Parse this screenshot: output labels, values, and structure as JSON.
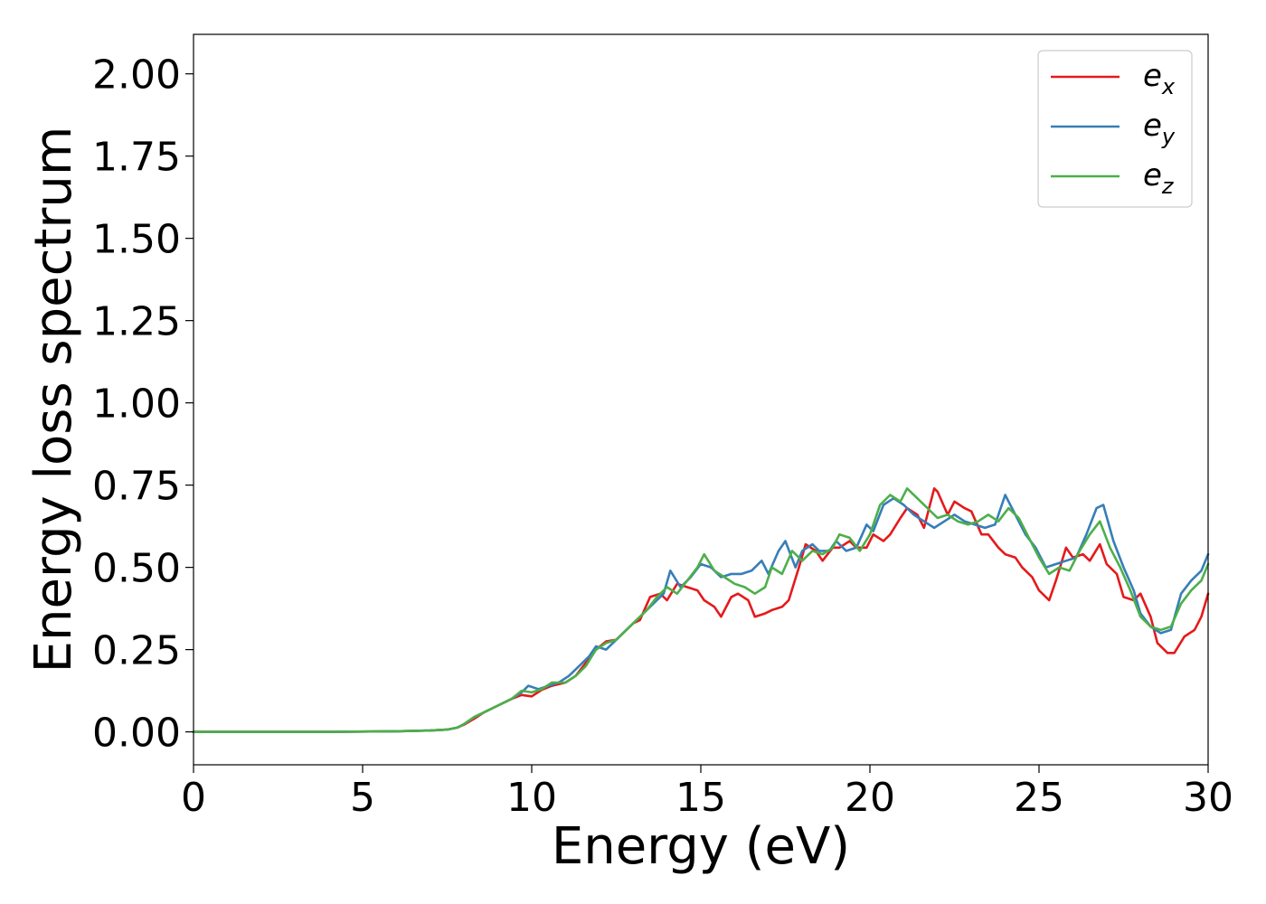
{
  "chart_data": {
    "type": "line",
    "xlabel": "Energy (eV)",
    "ylabel": "Energy loss spectrum",
    "xlim": [
      0,
      30
    ],
    "ylim": [
      -0.1,
      2.12
    ],
    "xticks": [
      0,
      5,
      10,
      15,
      20,
      25,
      30
    ],
    "xtick_labels": [
      "0",
      "5",
      "10",
      "15",
      "20",
      "25",
      "30"
    ],
    "yticks": [
      0.0,
      0.25,
      0.5,
      0.75,
      1.0,
      1.25,
      1.5,
      1.75,
      2.0
    ],
    "ytick_labels": [
      "0.00",
      "0.25",
      "0.50",
      "0.75",
      "1.00",
      "1.25",
      "1.50",
      "1.75",
      "2.00"
    ],
    "grid": false,
    "legend_position": "top-right",
    "series": [
      {
        "name": "e_x",
        "legend_main": "e",
        "legend_sub": "x",
        "color": "#e41a1c",
        "x": [
          0,
          2,
          4,
          6,
          7,
          7.5,
          7.8,
          8.0,
          8.3,
          8.6,
          9.0,
          9.4,
          9.7,
          10.0,
          10.3,
          10.6,
          11.0,
          11.3,
          11.6,
          11.9,
          12.2,
          12.5,
          12.8,
          13.0,
          13.2,
          13.5,
          13.8,
          14.0,
          14.3,
          14.6,
          14.9,
          15.1,
          15.4,
          15.6,
          15.9,
          16.1,
          16.4,
          16.6,
          16.9,
          17.1,
          17.4,
          17.6,
          17.9,
          18.1,
          18.4,
          18.6,
          18.9,
          19.1,
          19.4,
          19.6,
          19.9,
          20.1,
          20.4,
          20.6,
          20.9,
          21.1,
          21.4,
          21.6,
          21.9,
          22.0,
          22.3,
          22.5,
          22.8,
          23.0,
          23.3,
          23.5,
          23.8,
          24.0,
          24.3,
          24.5,
          24.8,
          25.0,
          25.3,
          25.5,
          25.8,
          26.0,
          26.3,
          26.5,
          26.8,
          27.0,
          27.3,
          27.5,
          27.8,
          28.0,
          28.3,
          28.5,
          28.8,
          29.0,
          29.3,
          29.6,
          29.8,
          30.0
        ],
        "y": [
          0,
          0,
          0,
          0.002,
          0.004,
          0.007,
          0.013,
          0.022,
          0.04,
          0.06,
          0.08,
          0.1,
          0.112,
          0.108,
          0.128,
          0.14,
          0.15,
          0.17,
          0.21,
          0.25,
          0.275,
          0.28,
          0.31,
          0.33,
          0.34,
          0.41,
          0.42,
          0.4,
          0.45,
          0.44,
          0.43,
          0.4,
          0.38,
          0.35,
          0.41,
          0.42,
          0.4,
          0.35,
          0.36,
          0.37,
          0.38,
          0.4,
          0.5,
          0.57,
          0.55,
          0.52,
          0.56,
          0.56,
          0.58,
          0.56,
          0.56,
          0.6,
          0.58,
          0.6,
          0.65,
          0.68,
          0.66,
          0.62,
          0.74,
          0.73,
          0.66,
          0.7,
          0.68,
          0.67,
          0.6,
          0.6,
          0.56,
          0.54,
          0.53,
          0.5,
          0.47,
          0.43,
          0.4,
          0.46,
          0.56,
          0.53,
          0.54,
          0.52,
          0.57,
          0.51,
          0.48,
          0.41,
          0.4,
          0.42,
          0.35,
          0.27,
          0.24,
          0.24,
          0.29,
          0.31,
          0.35,
          0.42
        ]
      },
      {
        "name": "e_y",
        "legend_main": "e",
        "legend_sub": "y",
        "color": "#377eb8",
        "x": [
          0,
          2,
          4,
          6,
          7,
          7.5,
          7.8,
          8.0,
          8.3,
          8.6,
          9.0,
          9.4,
          9.7,
          9.9,
          10.2,
          10.5,
          10.8,
          11.1,
          11.4,
          11.7,
          11.9,
          12.2,
          12.5,
          12.8,
          13.1,
          13.4,
          13.7,
          13.9,
          14.1,
          14.4,
          14.7,
          15.0,
          15.3,
          15.6,
          15.9,
          16.2,
          16.5,
          16.8,
          17.0,
          17.3,
          17.5,
          17.8,
          18.0,
          18.3,
          18.5,
          18.8,
          19.0,
          19.3,
          19.6,
          19.9,
          20.1,
          20.4,
          20.7,
          21.0,
          21.3,
          21.6,
          21.9,
          22.2,
          22.5,
          22.8,
          23.1,
          23.4,
          23.7,
          24.0,
          24.3,
          24.6,
          24.9,
          25.2,
          25.5,
          25.8,
          26.1,
          26.4,
          26.7,
          26.9,
          27.2,
          27.5,
          27.8,
          28.0,
          28.3,
          28.6,
          28.9,
          29.2,
          29.5,
          29.8,
          30.0
        ],
        "y": [
          0,
          0,
          0,
          0.002,
          0.004,
          0.007,
          0.013,
          0.024,
          0.045,
          0.06,
          0.08,
          0.1,
          0.12,
          0.14,
          0.13,
          0.14,
          0.15,
          0.17,
          0.2,
          0.23,
          0.26,
          0.25,
          0.28,
          0.31,
          0.34,
          0.37,
          0.4,
          0.42,
          0.49,
          0.44,
          0.47,
          0.51,
          0.5,
          0.47,
          0.48,
          0.48,
          0.49,
          0.52,
          0.48,
          0.55,
          0.58,
          0.5,
          0.55,
          0.57,
          0.55,
          0.55,
          0.58,
          0.55,
          0.56,
          0.63,
          0.61,
          0.69,
          0.71,
          0.69,
          0.66,
          0.64,
          0.62,
          0.64,
          0.66,
          0.64,
          0.63,
          0.62,
          0.63,
          0.72,
          0.66,
          0.6,
          0.56,
          0.5,
          0.51,
          0.52,
          0.53,
          0.6,
          0.68,
          0.69,
          0.58,
          0.5,
          0.43,
          0.36,
          0.32,
          0.3,
          0.31,
          0.42,
          0.46,
          0.49,
          0.54
        ]
      },
      {
        "name": "e_z",
        "legend_main": "e",
        "legend_sub": "z",
        "color": "#4daf4a",
        "x": [
          0,
          2,
          4,
          6,
          7,
          7.5,
          7.8,
          8.0,
          8.3,
          8.6,
          9.0,
          9.4,
          9.7,
          10.0,
          10.3,
          10.6,
          11.0,
          11.3,
          11.6,
          11.9,
          12.2,
          12.5,
          12.8,
          13.1,
          13.4,
          13.7,
          14.0,
          14.3,
          14.6,
          14.9,
          15.1,
          15.4,
          15.7,
          16.0,
          16.3,
          16.6,
          16.9,
          17.1,
          17.4,
          17.7,
          18.0,
          18.3,
          18.6,
          18.9,
          19.1,
          19.4,
          19.7,
          20.0,
          20.3,
          20.6,
          20.9,
          21.1,
          21.4,
          21.7,
          22.0,
          22.3,
          22.6,
          22.9,
          23.2,
          23.5,
          23.8,
          24.1,
          24.4,
          24.7,
          25.0,
          25.3,
          25.6,
          25.9,
          26.2,
          26.5,
          26.8,
          27.1,
          27.4,
          27.7,
          28.0,
          28.3,
          28.6,
          28.9,
          29.2,
          29.5,
          29.8,
          30.0
        ],
        "y": [
          0,
          0,
          0,
          0.002,
          0.004,
          0.007,
          0.013,
          0.024,
          0.045,
          0.06,
          0.08,
          0.1,
          0.125,
          0.12,
          0.13,
          0.15,
          0.15,
          0.17,
          0.2,
          0.25,
          0.27,
          0.28,
          0.31,
          0.34,
          0.37,
          0.41,
          0.44,
          0.42,
          0.46,
          0.5,
          0.54,
          0.49,
          0.47,
          0.45,
          0.44,
          0.42,
          0.44,
          0.5,
          0.48,
          0.55,
          0.52,
          0.55,
          0.54,
          0.56,
          0.6,
          0.59,
          0.55,
          0.6,
          0.69,
          0.72,
          0.7,
          0.74,
          0.71,
          0.68,
          0.65,
          0.66,
          0.64,
          0.63,
          0.64,
          0.66,
          0.64,
          0.68,
          0.65,
          0.59,
          0.53,
          0.48,
          0.5,
          0.49,
          0.55,
          0.6,
          0.64,
          0.56,
          0.5,
          0.43,
          0.35,
          0.32,
          0.31,
          0.32,
          0.39,
          0.43,
          0.46,
          0.51
        ]
      }
    ]
  }
}
